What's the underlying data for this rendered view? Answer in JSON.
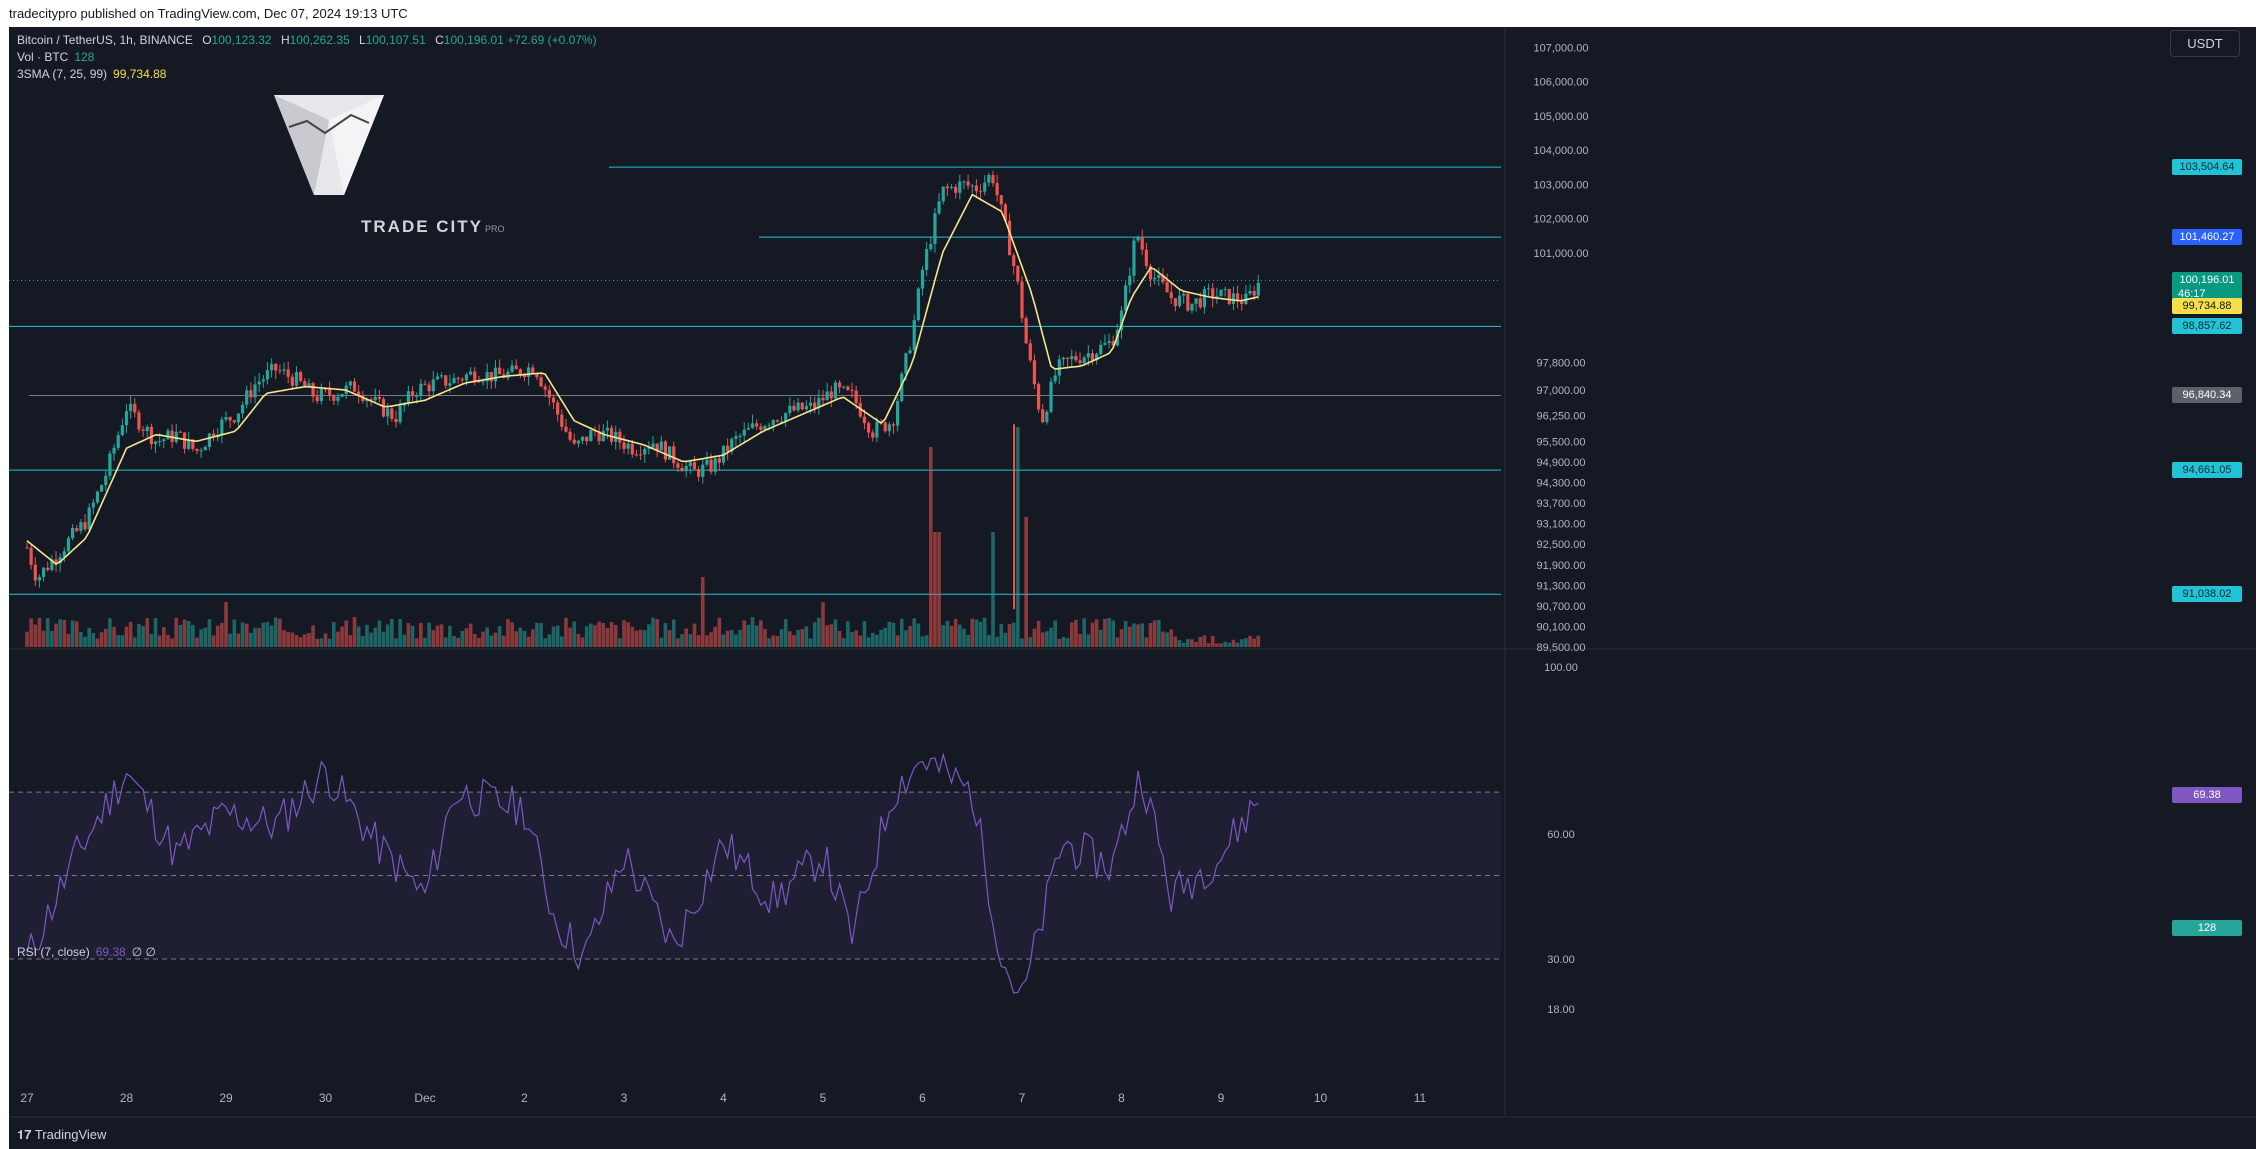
{
  "header": {
    "published": "tradecitypro published on TradingView.com, Dec 07, 2024 19:13 UTC"
  },
  "legend": {
    "symbol": "Bitcoin / TetherUS, 1h, BINANCE",
    "o_label": "O",
    "o": "100,123.32",
    "h_label": "H",
    "h": "100,262.35",
    "l_label": "L",
    "l": "100,107.51",
    "c_label": "C",
    "c": "100,196.01",
    "change": "+72.69 (+0.07%)",
    "vol_label": "Vol · BTC",
    "vol": "128",
    "sma_label": "3SMA (7, 25, 99)",
    "sma": "99,734.88",
    "rsi_label": "RSI (7, close)",
    "rsi": "69.38",
    "rsi_extra": "∅ ∅"
  },
  "quote_currency": "USDT",
  "watermark": {
    "text": "TRADE CITY",
    "sub": "PRO"
  },
  "footer": {
    "brand": "TradingView"
  },
  "colors": {
    "background": "#151924",
    "up": "#26a69a",
    "down": "#ef5350",
    "sma": "#f5e68c",
    "level": "#22c3d6",
    "rsi": "#7e57c2",
    "text": "#b2b5be"
  },
  "price_axis": {
    "ticks": [
      "107,000.00",
      "106,000.00",
      "105,000.00",
      "104,000.00",
      "103,000.00",
      "102,000.00",
      "101,000.00",
      "97,800.00",
      "97,000.00",
      "96,250.00",
      "95,500.00",
      "94,900.00",
      "94,300.00",
      "93,700.00",
      "93,100.00",
      "92,500.00",
      "91,900.00",
      "91,300.00",
      "90,700.00",
      "90,100.00",
      "89,500.00"
    ]
  },
  "rsi_axis": {
    "ticks": [
      "100.00",
      "60.00",
      "30.00",
      "18.00"
    ]
  },
  "time_axis": {
    "ticks": [
      "27",
      "28",
      "29",
      "30",
      "Dec",
      "2",
      "3",
      "4",
      "5",
      "6",
      "7",
      "8",
      "9",
      "10",
      "11"
    ]
  },
  "levels": [
    {
      "price": "103,504.64"
    },
    {
      "price": "101,460.27"
    },
    {
      "price": "98,857.62"
    },
    {
      "price": "96,840.34"
    },
    {
      "price": "94,661.05"
    },
    {
      "price": "91,038.02"
    }
  ],
  "last_price": {
    "price": "100,196.01",
    "countdown": "46:17"
  },
  "sma_tag": "99,734.88",
  "volume_tag": "128",
  "rsi_tag": "69.38",
  "chart_data": {
    "type": "candlestick",
    "title": "",
    "series_path_close": [
      [
        0,
        92400
      ],
      [
        0.1,
        91500
      ],
      [
        0.3,
        92200
      ],
      [
        0.6,
        93200
      ],
      [
        0.8,
        94600
      ],
      [
        1.0,
        96500
      ],
      [
        1.15,
        96000
      ],
      [
        1.3,
        95500
      ],
      [
        1.5,
        95700
      ],
      [
        1.7,
        95200
      ],
      [
        1.9,
        95900
      ],
      [
        2.1,
        96300
      ],
      [
        2.3,
        97200
      ],
      [
        2.5,
        97600
      ],
      [
        2.7,
        97300
      ],
      [
        2.9,
        96800
      ],
      [
        3.1,
        96900
      ],
      [
        3.3,
        97100
      ],
      [
        3.5,
        96600
      ],
      [
        3.7,
        96200
      ],
      [
        3.9,
        97000
      ],
      [
        4.1,
        97200
      ],
      [
        4.3,
        97300
      ],
      [
        4.5,
        97500
      ],
      [
        4.7,
        97400
      ],
      [
        4.9,
        97500
      ],
      [
        5.1,
        97700
      ],
      [
        5.3,
        96500
      ],
      [
        5.5,
        95300
      ],
      [
        5.7,
        95800
      ],
      [
        5.9,
        95600
      ],
      [
        6.1,
        95300
      ],
      [
        6.3,
        95500
      ],
      [
        6.5,
        95000
      ],
      [
        6.7,
        94600
      ],
      [
        6.9,
        94800
      ],
      [
        7.1,
        95500
      ],
      [
        7.3,
        95900
      ],
      [
        7.5,
        96200
      ],
      [
        7.7,
        96400
      ],
      [
        7.9,
        96500
      ],
      [
        8.1,
        97000
      ],
      [
        8.3,
        96800
      ],
      [
        8.5,
        95800
      ],
      [
        8.7,
        96100
      ],
      [
        8.9,
        98700
      ],
      [
        9.0,
        100500
      ],
      [
        9.2,
        102800
      ],
      [
        9.4,
        103000
      ],
      [
        9.55,
        102900
      ],
      [
        9.7,
        103300
      ],
      [
        9.85,
        101500
      ],
      [
        9.95,
        100200
      ],
      [
        10.05,
        98200
      ],
      [
        10.2,
        96100
      ],
      [
        10.35,
        97600
      ],
      [
        10.5,
        97900
      ],
      [
        10.7,
        98100
      ],
      [
        10.9,
        98400
      ],
      [
        11.0,
        99200
      ],
      [
        11.15,
        101600
      ],
      [
        11.3,
        100400
      ],
      [
        11.5,
        99700
      ],
      [
        11.7,
        99500
      ],
      [
        11.9,
        99800
      ],
      [
        12.1,
        99700
      ],
      [
        12.25,
        99600
      ],
      [
        12.4,
        100200
      ]
    ],
    "sma_path": [
      [
        0,
        92600
      ],
      [
        0.3,
        91900
      ],
      [
        0.6,
        92700
      ],
      [
        1.0,
        95300
      ],
      [
        1.3,
        95700
      ],
      [
        1.7,
        95500
      ],
      [
        2.1,
        95800
      ],
      [
        2.4,
        96900
      ],
      [
        2.8,
        97100
      ],
      [
        3.2,
        97000
      ],
      [
        3.6,
        96500
      ],
      [
        4.0,
        96700
      ],
      [
        4.4,
        97200
      ],
      [
        4.8,
        97400
      ],
      [
        5.2,
        97500
      ],
      [
        5.5,
        96100
      ],
      [
        5.8,
        95700
      ],
      [
        6.2,
        95400
      ],
      [
        6.6,
        94900
      ],
      [
        7.0,
        95100
      ],
      [
        7.4,
        95800
      ],
      [
        7.8,
        96300
      ],
      [
        8.2,
        96800
      ],
      [
        8.6,
        96000
      ],
      [
        8.9,
        97800
      ],
      [
        9.2,
        101000
      ],
      [
        9.5,
        102700
      ],
      [
        9.8,
        102200
      ],
      [
        10.1,
        99800
      ],
      [
        10.3,
        97600
      ],
      [
        10.6,
        97700
      ],
      [
        10.9,
        98100
      ],
      [
        11.1,
        99700
      ],
      [
        11.3,
        100600
      ],
      [
        11.6,
        99900
      ],
      [
        11.9,
        99700
      ],
      [
        12.2,
        99600
      ],
      [
        12.4,
        99735
      ]
    ],
    "volume_peaks": [
      [
        0,
        30
      ],
      [
        1,
        25
      ],
      [
        2,
        45
      ],
      [
        3,
        28
      ],
      [
        4,
        30
      ],
      [
        5,
        35
      ],
      [
        6,
        30
      ],
      [
        6.8,
        70
      ],
      [
        7,
        32
      ],
      [
        8,
        45
      ],
      [
        9.1,
        200
      ],
      [
        9.15,
        115
      ],
      [
        9.7,
        115
      ],
      [
        9.95,
        220
      ],
      [
        10.05,
        130
      ],
      [
        11,
        25
      ],
      [
        12.4,
        10
      ]
    ],
    "rsi_path": [
      [
        0,
        30
      ],
      [
        0.5,
        55
      ],
      [
        1,
        75
      ],
      [
        1.5,
        55
      ],
      [
        2,
        65
      ],
      [
        2.5,
        62
      ],
      [
        3,
        75
      ],
      [
        3.5,
        58
      ],
      [
        4,
        45
      ],
      [
        4.3,
        70
      ],
      [
        5,
        66
      ],
      [
        5.3,
        40
      ],
      [
        5.6,
        30
      ],
      [
        6,
        55
      ],
      [
        6.5,
        33
      ],
      [
        7,
        58
      ],
      [
        7.5,
        44
      ],
      [
        8,
        55
      ],
      [
        8.3,
        35
      ],
      [
        8.7,
        70
      ],
      [
        9.0,
        78
      ],
      [
        9.5,
        70
      ],
      [
        9.8,
        30
      ],
      [
        10.0,
        20
      ],
      [
        10.4,
        58
      ],
      [
        10.9,
        52
      ],
      [
        11.2,
        75
      ],
      [
        11.5,
        45
      ],
      [
        12.0,
        55
      ],
      [
        12.4,
        69.38
      ]
    ],
    "ylim": [
      89500,
      107300
    ]
  }
}
